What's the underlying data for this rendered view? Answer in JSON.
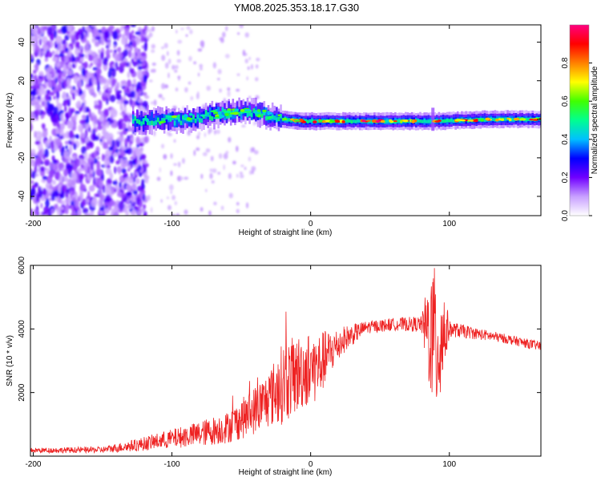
{
  "chart_data": [
    {
      "type": "heatmap",
      "title": "YM08.2025.353.18.17.G30",
      "xlabel": "Height of straight line (km)",
      "ylabel": "Frequency (Hz)",
      "xlim": [
        -202,
        166
      ],
      "ylim": [
        -50,
        49
      ],
      "xticks": [
        -200,
        -100,
        0,
        100
      ],
      "yticks": [
        40,
        20,
        0,
        -20,
        -40
      ],
      "ridge": [
        {
          "x": -125,
          "y": -1
        },
        {
          "x": -110,
          "y": 0
        },
        {
          "x": -95,
          "y": 0
        },
        {
          "x": -80,
          "y": 1
        },
        {
          "x": -65,
          "y": 3
        },
        {
          "x": -55,
          "y": 4
        },
        {
          "x": -45,
          "y": 4
        },
        {
          "x": -35,
          "y": 3
        },
        {
          "x": -28,
          "y": 1
        },
        {
          "x": -20,
          "y": 0
        },
        {
          "x": -5,
          "y": -1
        },
        {
          "x": 20,
          "y": -1
        },
        {
          "x": 60,
          "y": -1
        },
        {
          "x": 90,
          "y": -1
        },
        {
          "x": 130,
          "y": 0
        },
        {
          "x": 166,
          "y": 0
        }
      ],
      "colorbar": {
        "label": "Normalized spectral amplitude",
        "ticks": [
          "0.0",
          "0.2",
          "0.4",
          "0.6",
          "0.8"
        ],
        "tick_values": [
          0.0,
          0.2,
          0.4,
          0.6,
          0.8
        ],
        "range": [
          0,
          1
        ],
        "colors": [
          "#ffffff",
          "#c8a0ff",
          "#7000ff",
          "#0000ff",
          "#00c0ff",
          "#00ff90",
          "#40ff00",
          "#ffff00",
          "#ff8000",
          "#ff0000",
          "#ff0080"
        ]
      }
    },
    {
      "type": "line",
      "xlabel": "Height of straight line (km)",
      "ylabel": "SNR (10 * v/v)",
      "xlim": [
        -202,
        166
      ],
      "ylim": [
        0,
        6000
      ],
      "xticks": [
        -200,
        -100,
        0,
        100
      ],
      "yticks": [
        6000,
        4000,
        2000
      ],
      "series": [
        {
          "name": "SNR",
          "color": "#ee2222",
          "envelope": [
            {
              "x": -202,
              "mean": 180,
              "spread": 80
            },
            {
              "x": -150,
              "mean": 200,
              "spread": 100
            },
            {
              "x": -125,
              "mean": 350,
              "spread": 200
            },
            {
              "x": -100,
              "mean": 550,
              "spread": 300
            },
            {
              "x": -80,
              "mean": 700,
              "spread": 400
            },
            {
              "x": -60,
              "mean": 900,
              "spread": 500
            },
            {
              "x": -45,
              "mean": 1300,
              "spread": 700
            },
            {
              "x": -30,
              "mean": 1800,
              "spread": 900
            },
            {
              "x": -20,
              "mean": 2300,
              "spread": 1300
            },
            {
              "x": -5,
              "mean": 2700,
              "spread": 1200
            },
            {
              "x": 5,
              "mean": 2800,
              "spread": 1100
            },
            {
              "x": 15,
              "mean": 3300,
              "spread": 700
            },
            {
              "x": 25,
              "mean": 3700,
              "spread": 400
            },
            {
              "x": 40,
              "mean": 4050,
              "spread": 200
            },
            {
              "x": 60,
              "mean": 4150,
              "spread": 200
            },
            {
              "x": 80,
              "mean": 4150,
              "spread": 250
            },
            {
              "x": 86,
              "mean": 3900,
              "spread": 2000
            },
            {
              "x": 92,
              "mean": 3500,
              "spread": 2500
            },
            {
              "x": 96,
              "mean": 3900,
              "spread": 1500
            },
            {
              "x": 100,
              "mean": 4000,
              "spread": 250
            },
            {
              "x": 120,
              "mean": 3850,
              "spread": 180
            },
            {
              "x": 140,
              "mean": 3700,
              "spread": 150
            },
            {
              "x": 166,
              "mean": 3450,
              "spread": 150
            }
          ]
        }
      ]
    }
  ]
}
